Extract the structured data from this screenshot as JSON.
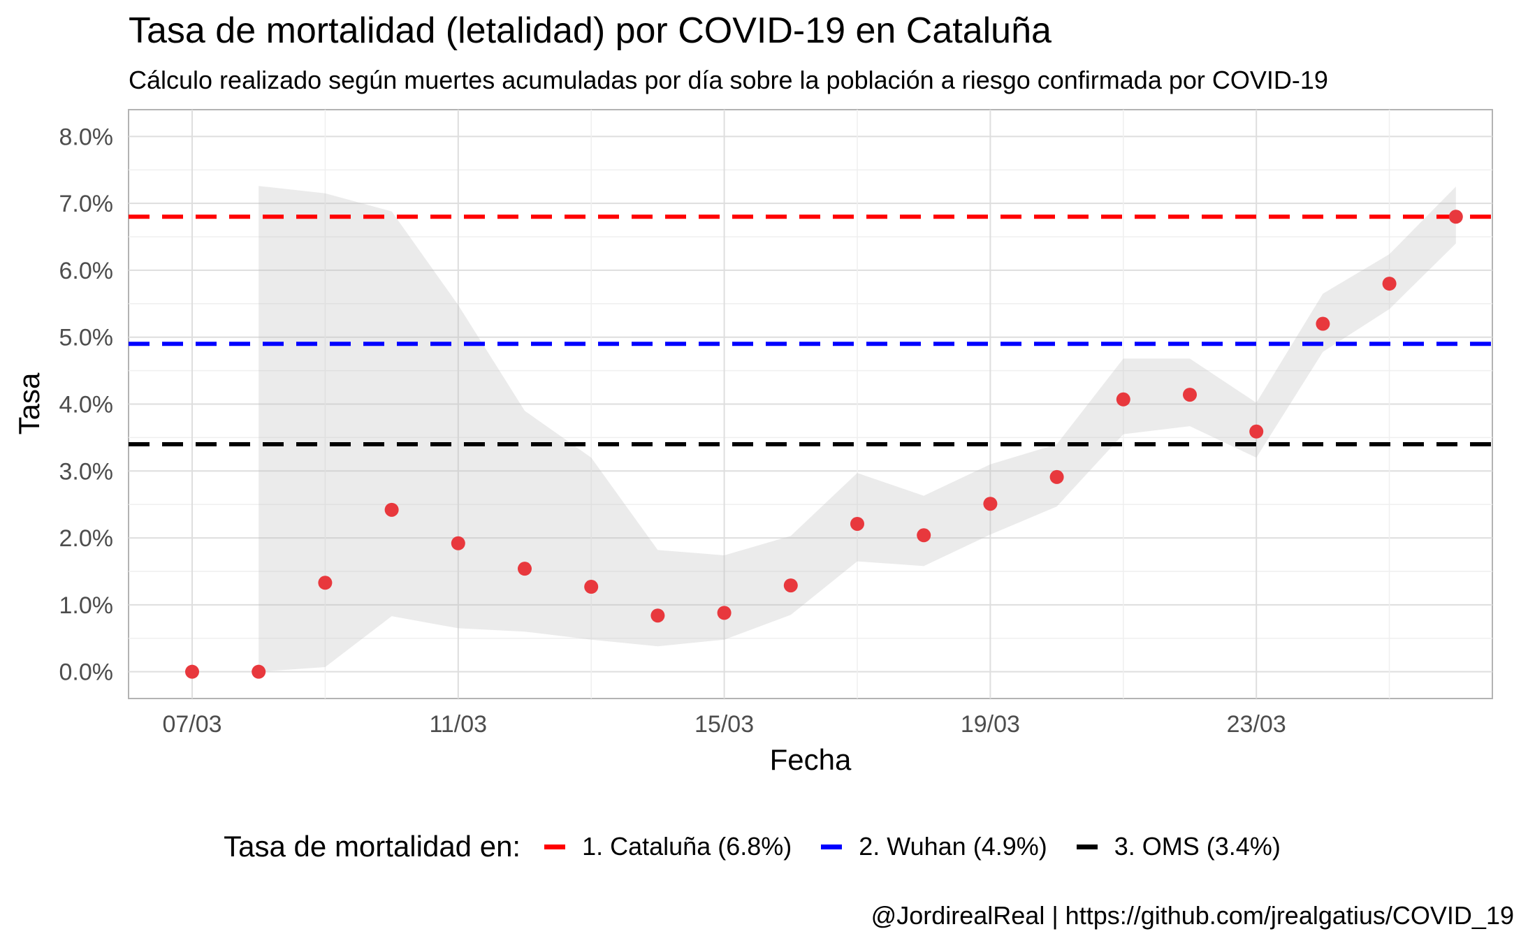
{
  "chart_data": {
    "type": "scatter",
    "title": "Tasa de mortalidad (letalidad) por COVID-19 en Cataluña",
    "subtitle": "Cálculo realizado según muertes acumuladas por día sobre la población a riesgo confirmada por COVID-19",
    "xlabel": "Fecha",
    "ylabel": "Tasa",
    "caption": "@JordirealReal | https://github.com/jrealgatius/COVID_19",
    "x_ticks": [
      "07/03",
      "11/03",
      "15/03",
      "19/03",
      "23/03"
    ],
    "y_ticks": [
      "0.0%",
      "1.0%",
      "2.0%",
      "3.0%",
      "4.0%",
      "5.0%",
      "6.0%",
      "7.0%",
      "8.0%"
    ],
    "ylim": [
      -0.4,
      8.4
    ],
    "grid": true,
    "x": [
      "07/03",
      "08/03",
      "09/03",
      "10/03",
      "11/03",
      "12/03",
      "13/03",
      "14/03",
      "15/03",
      "16/03",
      "17/03",
      "18/03",
      "19/03",
      "20/03",
      "21/03",
      "22/03",
      "23/03",
      "24/03",
      "25/03",
      "26/03"
    ],
    "series": [
      {
        "values": [
          0.0,
          0.0,
          1.33,
          2.42,
          1.92,
          1.54,
          1.27,
          0.84,
          0.88,
          1.29,
          2.21,
          2.04,
          2.51,
          2.91,
          4.07,
          4.14,
          3.59,
          5.2,
          5.8,
          6.8
        ],
        "ci_lower": [
          null,
          0.0,
          0.07,
          0.83,
          0.65,
          0.6,
          0.48,
          0.38,
          0.48,
          0.85,
          1.65,
          1.58,
          2.05,
          2.47,
          3.55,
          3.67,
          3.2,
          4.78,
          5.42,
          6.4
        ],
        "ci_upper": [
          null,
          7.26,
          7.15,
          6.88,
          5.48,
          3.9,
          3.2,
          1.82,
          1.74,
          2.03,
          2.97,
          2.63,
          3.1,
          3.4,
          4.68,
          4.68,
          4.02,
          5.65,
          6.24,
          7.25
        ],
        "color": "#e8383d"
      }
    ],
    "reference_lines": [
      {
        "label": "1. Cataluña (6.8%)",
        "value": 6.8,
        "color": "#ff0000"
      },
      {
        "label": "2. Wuhan (4.9%)",
        "value": 4.9,
        "color": "#0000ff"
      },
      {
        "label": "3. OMS (3.4%)",
        "value": 3.4,
        "color": "#000000"
      }
    ],
    "legend": {
      "title": "Tasa de mortalidad en:",
      "placement": "bottom"
    }
  }
}
